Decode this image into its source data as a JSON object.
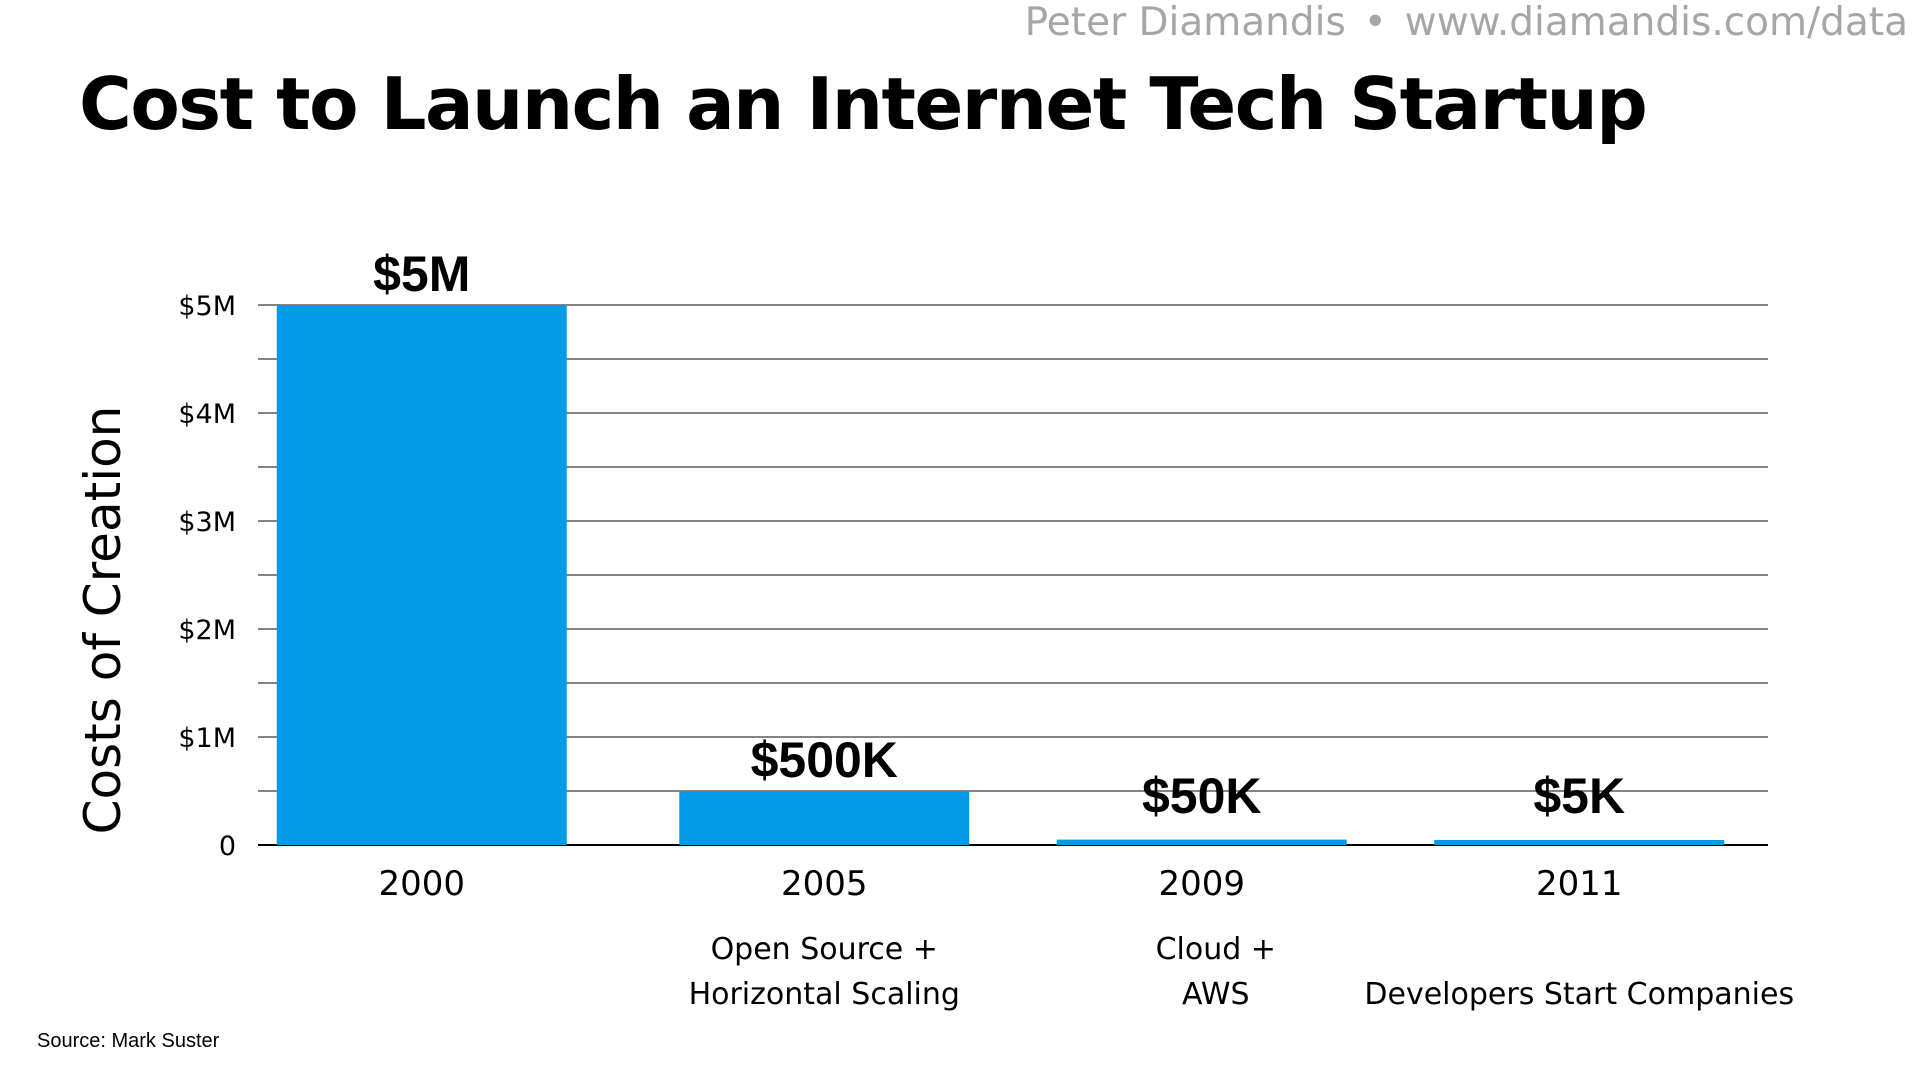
{
  "attribution": {
    "author": "Peter Diamandis",
    "separator": "•",
    "url": "www.diamandis.com/data"
  },
  "source": "Source: Mark Suster",
  "chart_data": {
    "type": "bar",
    "title": "Cost to Launch an Internet Tech Startup",
    "xlabel": "",
    "ylabel": "Costs of Creation",
    "categories": [
      "2000",
      "2005",
      "2009",
      "2011"
    ],
    "category_notes": [
      [],
      [
        "Open Source +",
        "Horizontal Scaling"
      ],
      [
        "Cloud +",
        "AWS"
      ],
      [
        "",
        "Developers Start Companies"
      ]
    ],
    "values": [
      5000000,
      500000,
      50000,
      5000
    ],
    "data_labels": [
      "$5M",
      "$500K",
      "$50K",
      "$5K"
    ],
    "ylim": [
      0,
      5000000
    ],
    "yticks": [
      {
        "value": 0,
        "label": "0"
      },
      {
        "value": 1000000,
        "label": "$1M"
      },
      {
        "value": 2000000,
        "label": "$2M"
      },
      {
        "value": 3000000,
        "label": "$3M"
      },
      {
        "value": 4000000,
        "label": "$4M"
      },
      {
        "value": 5000000,
        "label": "$5M"
      }
    ],
    "minor_gridlines": [
      500000,
      1500000,
      2500000,
      3500000,
      4500000
    ],
    "grid": true,
    "legend": "none",
    "bar_color": "#039be5"
  }
}
